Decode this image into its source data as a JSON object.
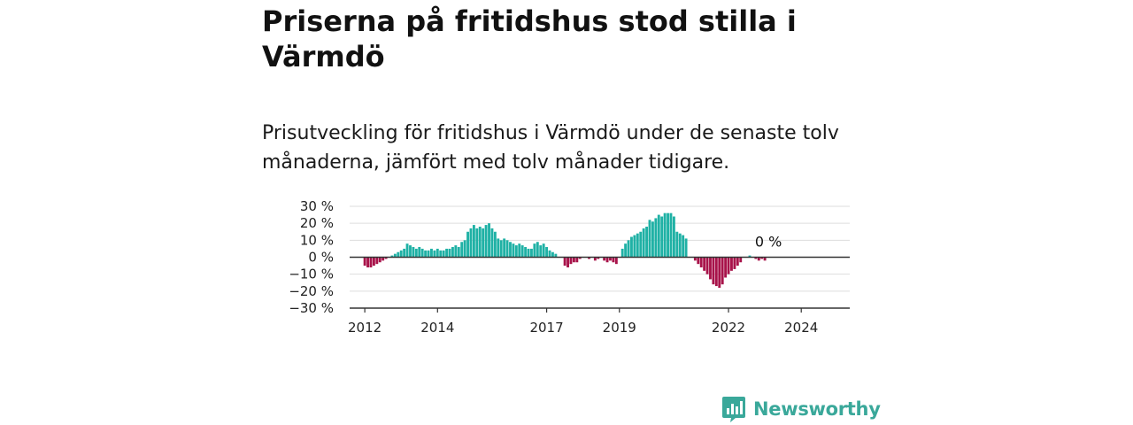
{
  "header": {
    "title": "Priserna på fritidshus stod stilla i Värmdö",
    "subtitle": "Prisutveckling för fritidshus i Värmdö under de senaste tolv månaderna, jämfört med tolv månader tidigare."
  },
  "logo": {
    "text": "Newsworthy",
    "icon": "newsworthy-logo-icon"
  },
  "colors": {
    "positive": "#1fb1a5",
    "negative": "#a8134a",
    "grid": "#dddddd",
    "axis": "#333333",
    "brand": "#3aa89a"
  },
  "chart_data": {
    "type": "bar",
    "x_start": "2011-08",
    "x_end": "2025-05",
    "ylim": [
      -30,
      30
    ],
    "yticks": [
      30,
      20,
      10,
      0,
      -10,
      -20,
      -30
    ],
    "ytick_labels": [
      "30 %",
      "20 %",
      "10 %",
      "0 %",
      "−10 %",
      "−20 %",
      "−30 %"
    ],
    "xticks": [
      "2012-01",
      "2014-01",
      "2017-01",
      "2019-01",
      "2022-01",
      "2024-01"
    ],
    "xtick_labels": [
      "2012",
      "2014",
      "2017",
      "2019",
      "2022",
      "2024"
    ],
    "grid": true,
    "annotation": "0 %",
    "series": [
      {
        "start": "2012-01",
        "values": [
          -5,
          -6,
          -6,
          -5,
          -4,
          -3,
          -2,
          -1,
          0,
          1,
          2,
          3,
          4,
          5,
          8,
          7,
          6,
          5,
          6,
          5,
          4,
          4,
          5,
          4,
          5,
          4,
          4,
          5,
          5,
          6,
          7,
          6,
          9,
          10,
          15,
          17,
          19,
          17,
          18,
          17,
          19,
          20,
          17,
          15,
          11,
          10,
          11,
          10,
          9,
          8,
          7,
          8,
          7,
          6,
          5,
          5,
          8,
          9,
          7,
          8,
          6,
          4,
          3,
          2,
          0,
          0,
          -5,
          -6,
          -4,
          -3,
          -3,
          -1,
          0,
          0,
          -1,
          0,
          -2,
          -1,
          0,
          -2,
          -3,
          -2,
          -3,
          -4,
          0,
          5,
          8,
          10,
          12,
          13,
          14,
          15,
          17,
          18,
          22,
          21,
          23,
          25,
          24,
          26,
          26,
          26,
          24,
          15,
          14,
          13,
          11,
          0,
          0,
          -2,
          -4,
          -6,
          -8,
          -10,
          -13,
          -16,
          -17,
          -18,
          -16,
          -12,
          -10,
          -8,
          -7,
          -5,
          -3,
          0,
          0,
          1,
          0,
          -1,
          -2,
          -1,
          -2
        ]
      }
    ]
  }
}
